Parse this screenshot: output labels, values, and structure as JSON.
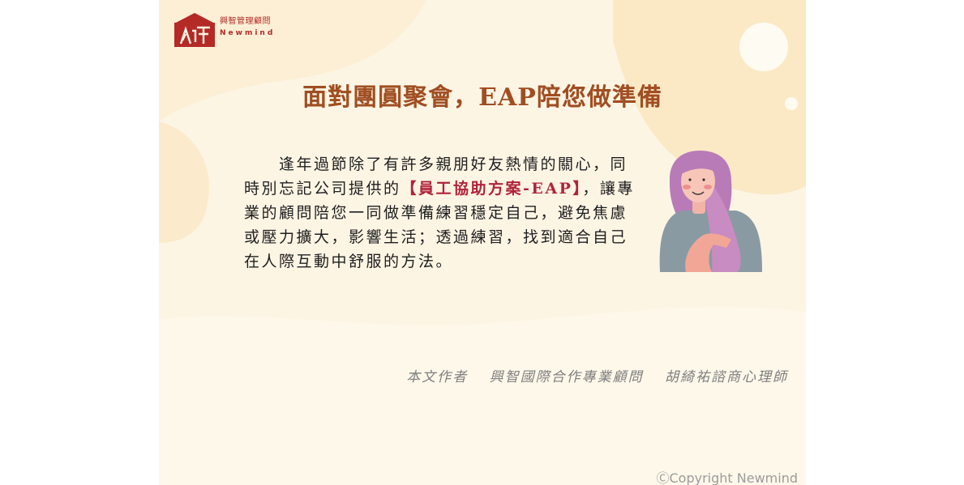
{
  "logo": {
    "name_cn": "興智管理顧問",
    "name_en": "Newmind",
    "brand_color": "#b32a26"
  },
  "title": "面對團圓聚會，EAP陪您做準備",
  "body": {
    "part1": "　　逢年過節除了有許多親朋好友熱情的關心，同時別忘記公司提供的",
    "highlight": "【員工協助方案-EAP】",
    "part2": "，讓專業的顧問陪您一同做準備練習穩定自己，避免焦慮或壓力擴大，影響生活；透過練習，找到適合自己在人際互動中舒服的方法。"
  },
  "author_line": "本文作者　 興智國際合作專業顧問　 胡綺祐諮商心理師",
  "copyright": "ⒸCopyright Newmind",
  "colors": {
    "background": "#fdf5e4",
    "title": "#a04e22",
    "highlight": "#b0243a",
    "author": "#7f7f7f"
  }
}
